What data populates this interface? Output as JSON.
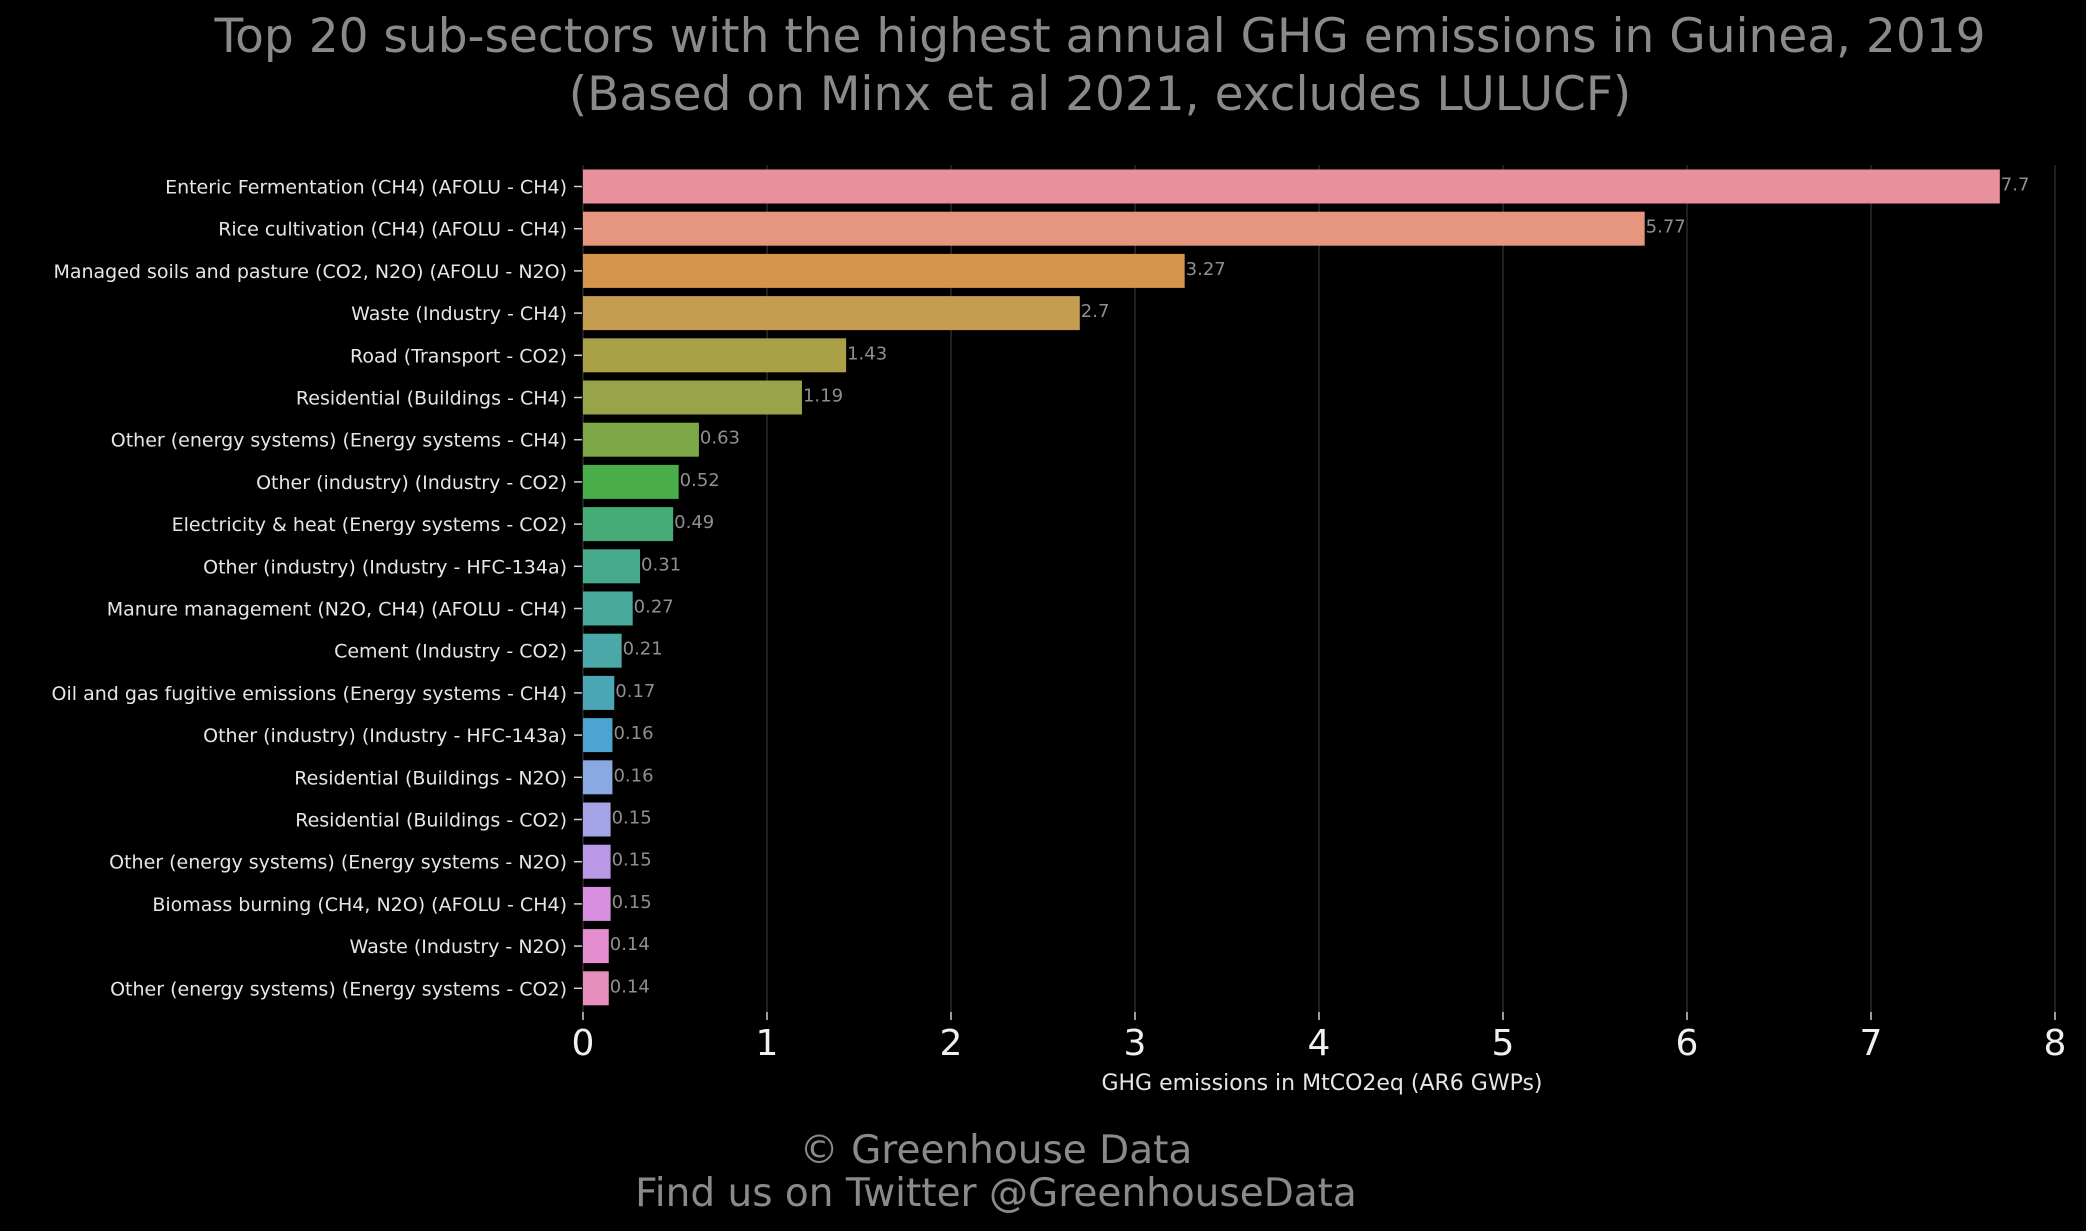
{
  "header": {
    "title_line1": "Top 20 sub-sectors with the highest annual GHG emissions in Guinea, 2019",
    "title_line2": "(Based on Minx et al 2021, excludes LULUCF)"
  },
  "footer": {
    "line1": "© Greenhouse Data",
    "line2": "Find us on Twitter @GreenhouseData"
  },
  "chart_data": {
    "type": "bar",
    "orientation": "horizontal",
    "title": "Top 20 sub-sectors with the highest annual GHG emissions in Guinea, 2019",
    "subtitle": "(Based on Minx et al 2021, excludes LULUCF)",
    "xlabel": "GHG emissions in MtCO2eq (AR6 GWPs)",
    "ylabel": "",
    "xlim": [
      0,
      8
    ],
    "x_ticks": [
      0,
      1,
      2,
      3,
      4,
      5,
      6,
      7,
      8
    ],
    "grid": "vertical",
    "categories": [
      "Enteric Fermentation (CH4) (AFOLU - CH4)",
      "Rice cultivation (CH4) (AFOLU - CH4)",
      "Managed soils and pasture (CO2, N2O) (AFOLU - N2O)",
      "Waste (Industry - CH4)",
      "Road (Transport - CO2)",
      "Residential (Buildings - CH4)",
      "Other (energy systems) (Energy systems - CH4)",
      "Other (industry) (Industry - CO2)",
      "Electricity & heat (Energy systems - CO2)",
      "Other (industry) (Industry - HFC-134a)",
      "Manure management (N2O, CH4) (AFOLU - CH4)",
      "Cement (Industry - CO2)",
      "Oil and gas fugitive emissions (Energy systems - CH4)",
      "Other (industry) (Industry - HFC-143a)",
      "Residential (Buildings - N2O)",
      "Residential (Buildings - CO2)",
      "Other (energy systems) (Energy systems - N2O)",
      "Biomass burning (CH4, N2O) (AFOLU - CH4)",
      "Waste (Industry - N2O)",
      "Other (energy systems) (Energy systems - CO2)"
    ],
    "values": [
      7.7,
      5.77,
      3.27,
      2.7,
      1.43,
      1.19,
      0.63,
      0.52,
      0.49,
      0.31,
      0.27,
      0.21,
      0.17,
      0.16,
      0.16,
      0.15,
      0.15,
      0.15,
      0.14,
      0.14
    ],
    "value_labels": [
      "7.7",
      "5.77",
      "3.27",
      "2.7",
      "1.43",
      "1.19",
      "0.63",
      "0.52",
      "0.49",
      "0.31",
      "0.27",
      "0.21",
      "0.17",
      "0.16",
      "0.16",
      "0.15",
      "0.15",
      "0.15",
      "0.14",
      "0.14"
    ],
    "colors": [
      "#e8919d",
      "#e6967f",
      "#d6954d",
      "#c49d50",
      "#a9a048",
      "#98a448",
      "#7da847",
      "#49ad49",
      "#47ab75",
      "#48aa8d",
      "#49a99b",
      "#4aa8a9",
      "#4ba7b6",
      "#4da4d0",
      "#8aa9e3",
      "#a3a3e6",
      "#bb98e6",
      "#d98fe0",
      "#e48dcf",
      "#e68ebc"
    ]
  }
}
